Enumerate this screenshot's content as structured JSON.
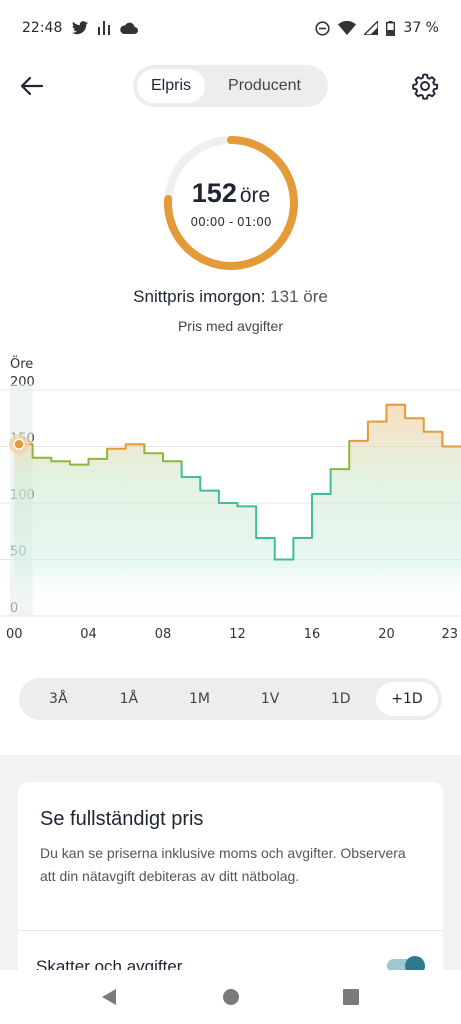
{
  "status_bar": {
    "time": "22:48",
    "battery": "37 %"
  },
  "header": {
    "tabs": [
      {
        "label": "Elpris",
        "active": true
      },
      {
        "label": "Producent",
        "active": false
      }
    ]
  },
  "current_price": {
    "value": "152",
    "unit": "öre",
    "time_range": "00:00 - 01:00",
    "ring_fraction": 0.76,
    "ring_color": "#e39a37"
  },
  "summary": {
    "label": "Snittpris imorgon:",
    "value": "131 öre",
    "subtitle": "Pris med avgifter"
  },
  "chart_data": {
    "type": "line",
    "step": true,
    "ylabel": "Öre",
    "ylim": [
      0,
      200
    ],
    "y_ticks": [
      "200",
      "150",
      "100",
      "50",
      "0"
    ],
    "x_ticks": [
      "00",
      "04",
      "08",
      "12",
      "16",
      "20",
      "23"
    ],
    "x_hours": [
      0,
      1,
      2,
      3,
      4,
      5,
      6,
      7,
      8,
      9,
      10,
      11,
      12,
      13,
      14,
      15,
      16,
      17,
      18,
      19,
      20,
      21,
      22,
      23
    ],
    "values": [
      152,
      140,
      137,
      134,
      139,
      148,
      152,
      144,
      137,
      123,
      111,
      100,
      97,
      69,
      50,
      69,
      108,
      130,
      155,
      172,
      187,
      175,
      163,
      150
    ],
    "colors": {
      "low": "#3fbf98",
      "mid": "#8fb53a",
      "high": "#e39a37"
    }
  },
  "ranges": [
    {
      "label": "3Å",
      "active": false
    },
    {
      "label": "1Å",
      "active": false
    },
    {
      "label": "1M",
      "active": false
    },
    {
      "label": "1V",
      "active": false
    },
    {
      "label": "1D",
      "active": false
    },
    {
      "label": "+1D",
      "active": true
    }
  ],
  "card": {
    "title": "Se fullständigt pris",
    "description": "Du kan se priserna inklusive moms och avgifter. Observera att din nätavgift debiteras av ditt nätbolag.",
    "toggle_label": "Skatter och avgifter",
    "toggle_on": true
  }
}
